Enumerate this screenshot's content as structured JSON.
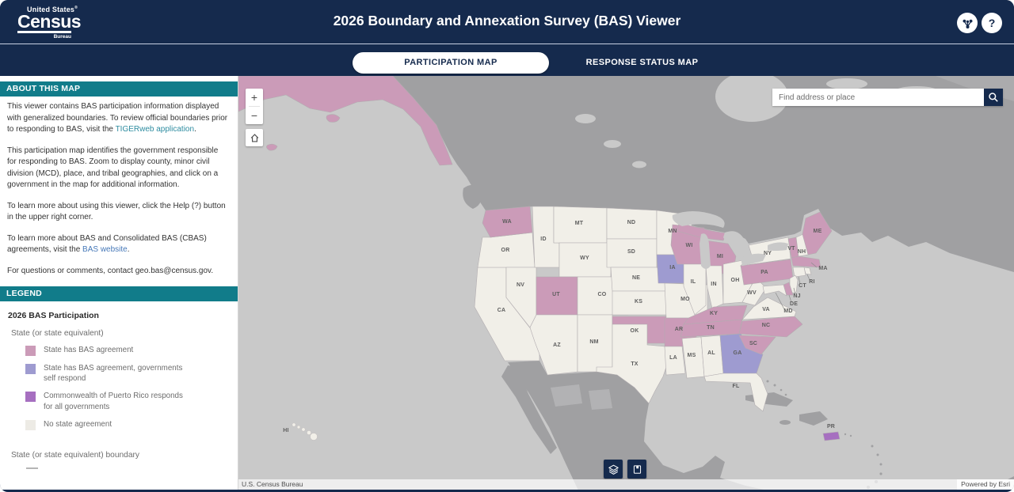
{
  "palette": {
    "navy": "#152a4d",
    "teal": "#117c8a",
    "link_teal": "#2e8ca0",
    "link_blue": "#4678b8",
    "ocean": "#c9c9c9",
    "foreign_land": "#a0a0a2",
    "us_default": "#f1efe8"
  },
  "header": {
    "logo": {
      "line1": "United States",
      "reg": "®",
      "line2": "Census",
      "line3": "Bureau"
    },
    "title": "2026 Boundary and Annexation Survey (BAS) Viewer",
    "share_icon": "share-icon",
    "help_label": "?"
  },
  "tabs": {
    "active": "PARTICIPATION MAP",
    "inactive": "RESPONSE STATUS MAP"
  },
  "sidebar": {
    "about": {
      "header": "ABOUT THIS MAP",
      "paragraphs": [
        [
          {
            "text": "This viewer contains BAS participation information displayed with generalized boundaries. To review official boundaries prior to responding to BAS, visit the "
          },
          {
            "text": "TIGERweb application",
            "link": "teal"
          },
          {
            "text": "."
          }
        ],
        [
          {
            "text": "This participation map identifies the government responsible for responding to BAS. Zoom to display county, minor civil division (MCD), place, and tribal geographies, and click on a government in the map for additional information."
          }
        ],
        [
          {
            "text": "To learn more about using this viewer, click the Help (?) button in the upper right corner."
          }
        ],
        [
          {
            "text": "To learn more about BAS and Consolidated BAS (CBAS) agreements, visit the "
          },
          {
            "text": "BAS website",
            "link": "blue"
          },
          {
            "text": "."
          }
        ],
        [
          {
            "text": "For questions or comments, contact geo.bas@census.gov."
          }
        ]
      ]
    },
    "legend": {
      "header": "LEGEND",
      "title": "2026 BAS Participation",
      "subtitle": "State (or state equivalent)",
      "items": [
        {
          "label": "State has BAS agreement",
          "color": "#cb9bb8"
        },
        {
          "label": "State has BAS agreement, governments self respond",
          "color": "#9e9bd0"
        },
        {
          "label": "Commonwealth of Puerto Rico responds for all governments",
          "color": "#a66fc0"
        },
        {
          "label": "No state agreement",
          "color": "#edebe5"
        }
      ],
      "boundary_label": "State (or state equivalent) boundary",
      "boundary_color": "#b5b5b5"
    }
  },
  "map": {
    "search_placeholder": "Find address or place",
    "zoom_in": "+",
    "zoom_out": "−",
    "attribution_left": "U.S. Census Bureau",
    "attribution_right": "Powered by Esri",
    "status_colors": {
      "agreement": "#cb9bb8",
      "self_respond": "#9e9bd0",
      "puerto_rico": "#a66fc0",
      "none": "#f1efe8"
    },
    "states": [
      {
        "abbr": "CA",
        "status": "none"
      },
      {
        "abbr": "OR",
        "status": "none"
      },
      {
        "abbr": "WA",
        "status": "agreement"
      },
      {
        "abbr": "NV",
        "status": "none"
      },
      {
        "abbr": "ID",
        "status": "none"
      },
      {
        "abbr": "MT",
        "status": "none"
      },
      {
        "abbr": "WY",
        "status": "none"
      },
      {
        "abbr": "UT",
        "status": "agreement"
      },
      {
        "abbr": "CO",
        "status": "none"
      },
      {
        "abbr": "AZ",
        "status": "none"
      },
      {
        "abbr": "NM",
        "status": "none"
      },
      {
        "abbr": "ND",
        "status": "none"
      },
      {
        "abbr": "SD",
        "status": "none"
      },
      {
        "abbr": "NE",
        "status": "none"
      },
      {
        "abbr": "KS",
        "status": "none"
      },
      {
        "abbr": "OK",
        "status": "agreement"
      },
      {
        "abbr": "TX",
        "status": "none"
      },
      {
        "abbr": "MN",
        "status": "none"
      },
      {
        "abbr": "IA",
        "status": "self_respond"
      },
      {
        "abbr": "MO",
        "status": "none"
      },
      {
        "abbr": "AR",
        "status": "agreement"
      },
      {
        "abbr": "LA",
        "status": "none"
      },
      {
        "abbr": "WI",
        "status": "agreement"
      },
      {
        "abbr": "IL",
        "status": "none"
      },
      {
        "abbr": "MI",
        "status": "agreement"
      },
      {
        "abbr": "IN",
        "status": "none"
      },
      {
        "abbr": "OH",
        "status": "none"
      },
      {
        "abbr": "KY",
        "status": "agreement"
      },
      {
        "abbr": "TN",
        "status": "agreement"
      },
      {
        "abbr": "MS",
        "status": "none"
      },
      {
        "abbr": "AL",
        "status": "none"
      },
      {
        "abbr": "GA",
        "status": "self_respond"
      },
      {
        "abbr": "FL",
        "status": "none"
      },
      {
        "abbr": "WV",
        "status": "none"
      },
      {
        "abbr": "VA",
        "status": "none"
      },
      {
        "abbr": "NC",
        "status": "agreement"
      },
      {
        "abbr": "SC",
        "status": "agreement"
      },
      {
        "abbr": "PA",
        "status": "agreement"
      },
      {
        "abbr": "NY",
        "status": "none"
      },
      {
        "abbr": "VT",
        "status": "agreement"
      },
      {
        "abbr": "NH",
        "status": "none"
      },
      {
        "abbr": "ME",
        "status": "agreement"
      },
      {
        "abbr": "MA",
        "status": "agreement"
      },
      {
        "abbr": "RI",
        "status": "none"
      },
      {
        "abbr": "CT",
        "status": "none"
      },
      {
        "abbr": "NJ",
        "status": "none"
      },
      {
        "abbr": "DE",
        "status": "agreement"
      },
      {
        "abbr": "MD",
        "status": "none"
      },
      {
        "abbr": "AK",
        "status": "agreement"
      },
      {
        "abbr": "HI",
        "status": "none"
      },
      {
        "abbr": "PR",
        "status": "puerto_rico"
      }
    ]
  }
}
